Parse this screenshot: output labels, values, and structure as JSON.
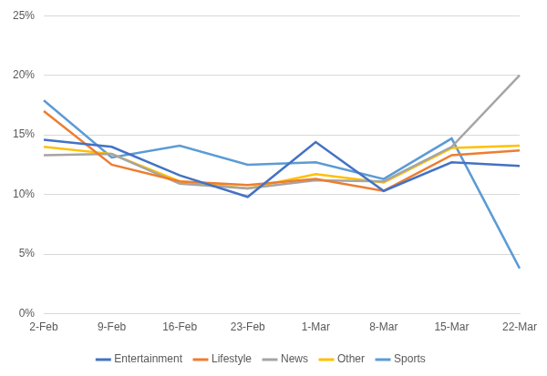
{
  "chart_data": {
    "type": "line",
    "categories": [
      "2-Feb",
      "9-Feb",
      "16-Feb",
      "23-Feb",
      "1-Mar",
      "8-Mar",
      "15-Mar",
      "22-Mar"
    ],
    "series": [
      {
        "name": "Entertainment",
        "color": "#4472c4",
        "values": [
          14.6,
          14.0,
          11.6,
          9.8,
          14.4,
          10.3,
          12.7,
          12.4
        ]
      },
      {
        "name": "Lifestyle",
        "color": "#ed7d31",
        "values": [
          17.0,
          12.5,
          11.1,
          10.8,
          11.3,
          10.3,
          13.3,
          13.7
        ]
      },
      {
        "name": "News",
        "color": "#a5a5a5",
        "values": [
          13.3,
          13.4,
          10.9,
          10.5,
          11.2,
          11.1,
          14.0,
          20.0
        ]
      },
      {
        "name": "Other",
        "color": "#ffc000",
        "values": [
          14.0,
          13.4,
          11.1,
          10.5,
          11.7,
          11.0,
          13.9,
          14.1
        ]
      },
      {
        "name": "Sports",
        "color": "#5b9bd5",
        "values": [
          17.9,
          13.1,
          14.1,
          12.5,
          12.7,
          11.3,
          14.7,
          3.8
        ]
      }
    ],
    "ylim": [
      0,
      25
    ],
    "yticks": [
      {
        "value": 0,
        "label": "0%"
      },
      {
        "value": 5,
        "label": "5%"
      },
      {
        "value": 10,
        "label": "10%"
      },
      {
        "value": 15,
        "label": "15%"
      },
      {
        "value": 20,
        "label": "20%"
      },
      {
        "value": 25,
        "label": "25%"
      }
    ],
    "grid": true,
    "legend": "bottom",
    "marker": "none",
    "line_style": "solid"
  }
}
